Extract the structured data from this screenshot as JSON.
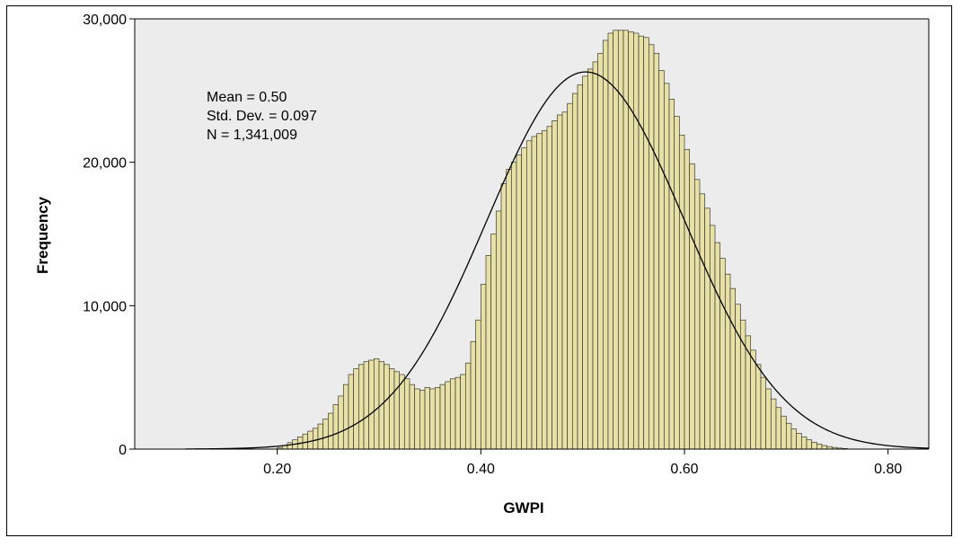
{
  "chart_data": {
    "type": "bar",
    "subtype": "histogram-with-normal-curve",
    "xlabel": "GWPI",
    "ylabel": "Frequency",
    "xlim": [
      0.06,
      0.84
    ],
    "ylim": [
      0,
      30000
    ],
    "x_ticks": [
      0.2,
      0.4,
      0.6,
      0.8
    ],
    "x_tick_labels": [
      "0.20",
      "0.40",
      "0.60",
      "0.80"
    ],
    "y_ticks": [
      0,
      10000,
      20000,
      30000
    ],
    "y_tick_labels": [
      "0",
      "10,000",
      "20,000",
      "30,000"
    ],
    "grid": false,
    "colors": {
      "plot_bg": "#ececec",
      "bar_fill": "#e7e0a7",
      "bar_stroke": "#3a3a2e",
      "curve": "#000000"
    },
    "stats": {
      "mean_label": "Mean = 0.50",
      "sd_label": "Std. Dev. = 0.097",
      "n_label": "N = 1,341,009"
    },
    "normal_curve": {
      "mean": 0.503,
      "sd": 0.097,
      "peak": 26300
    },
    "bin_width": 0.005,
    "bins": [
      {
        "x": 0.2,
        "y": 100
      },
      {
        "x": 0.205,
        "y": 250
      },
      {
        "x": 0.21,
        "y": 450
      },
      {
        "x": 0.215,
        "y": 650
      },
      {
        "x": 0.22,
        "y": 850
      },
      {
        "x": 0.225,
        "y": 1050
      },
      {
        "x": 0.23,
        "y": 1250
      },
      {
        "x": 0.235,
        "y": 1450
      },
      {
        "x": 0.24,
        "y": 1750
      },
      {
        "x": 0.245,
        "y": 2100
      },
      {
        "x": 0.25,
        "y": 2500
      },
      {
        "x": 0.255,
        "y": 3100
      },
      {
        "x": 0.26,
        "y": 3700
      },
      {
        "x": 0.265,
        "y": 4500
      },
      {
        "x": 0.27,
        "y": 5200
      },
      {
        "x": 0.275,
        "y": 5600
      },
      {
        "x": 0.28,
        "y": 5900
      },
      {
        "x": 0.285,
        "y": 6100
      },
      {
        "x": 0.29,
        "y": 6200
      },
      {
        "x": 0.295,
        "y": 6300
      },
      {
        "x": 0.3,
        "y": 6100
      },
      {
        "x": 0.305,
        "y": 5900
      },
      {
        "x": 0.31,
        "y": 5600
      },
      {
        "x": 0.315,
        "y": 5400
      },
      {
        "x": 0.32,
        "y": 5200
      },
      {
        "x": 0.325,
        "y": 4900
      },
      {
        "x": 0.33,
        "y": 4500
      },
      {
        "x": 0.335,
        "y": 4200
      },
      {
        "x": 0.34,
        "y": 4100
      },
      {
        "x": 0.345,
        "y": 4300
      },
      {
        "x": 0.35,
        "y": 4200
      },
      {
        "x": 0.355,
        "y": 4300
      },
      {
        "x": 0.36,
        "y": 4500
      },
      {
        "x": 0.365,
        "y": 4700
      },
      {
        "x": 0.37,
        "y": 4900
      },
      {
        "x": 0.375,
        "y": 5000
      },
      {
        "x": 0.38,
        "y": 5200
      },
      {
        "x": 0.385,
        "y": 6000
      },
      {
        "x": 0.39,
        "y": 7500
      },
      {
        "x": 0.395,
        "y": 9000
      },
      {
        "x": 0.4,
        "y": 11500
      },
      {
        "x": 0.405,
        "y": 13500
      },
      {
        "x": 0.41,
        "y": 15000
      },
      {
        "x": 0.415,
        "y": 16600
      },
      {
        "x": 0.42,
        "y": 18500
      },
      {
        "x": 0.425,
        "y": 19500
      },
      {
        "x": 0.43,
        "y": 20000
      },
      {
        "x": 0.435,
        "y": 20500
      },
      {
        "x": 0.44,
        "y": 21000
      },
      {
        "x": 0.445,
        "y": 21500
      },
      {
        "x": 0.45,
        "y": 21800
      },
      {
        "x": 0.455,
        "y": 22000
      },
      {
        "x": 0.46,
        "y": 22200
      },
      {
        "x": 0.465,
        "y": 22500
      },
      {
        "x": 0.47,
        "y": 22900
      },
      {
        "x": 0.475,
        "y": 23300
      },
      {
        "x": 0.48,
        "y": 23500
      },
      {
        "x": 0.485,
        "y": 24100
      },
      {
        "x": 0.49,
        "y": 24800
      },
      {
        "x": 0.495,
        "y": 25400
      },
      {
        "x": 0.5,
        "y": 26000
      },
      {
        "x": 0.505,
        "y": 26500
      },
      {
        "x": 0.51,
        "y": 27000
      },
      {
        "x": 0.515,
        "y": 27600
      },
      {
        "x": 0.52,
        "y": 28500
      },
      {
        "x": 0.525,
        "y": 29000
      },
      {
        "x": 0.53,
        "y": 29200
      },
      {
        "x": 0.535,
        "y": 29200
      },
      {
        "x": 0.54,
        "y": 29200
      },
      {
        "x": 0.545,
        "y": 29100
      },
      {
        "x": 0.55,
        "y": 29000
      },
      {
        "x": 0.555,
        "y": 28800
      },
      {
        "x": 0.56,
        "y": 28700
      },
      {
        "x": 0.565,
        "y": 28200
      },
      {
        "x": 0.57,
        "y": 27600
      },
      {
        "x": 0.575,
        "y": 26400
      },
      {
        "x": 0.58,
        "y": 25500
      },
      {
        "x": 0.585,
        "y": 24400
      },
      {
        "x": 0.59,
        "y": 23200
      },
      {
        "x": 0.595,
        "y": 21900
      },
      {
        "x": 0.6,
        "y": 20900
      },
      {
        "x": 0.605,
        "y": 19900
      },
      {
        "x": 0.61,
        "y": 18800
      },
      {
        "x": 0.615,
        "y": 17800
      },
      {
        "x": 0.62,
        "y": 16800
      },
      {
        "x": 0.625,
        "y": 15600
      },
      {
        "x": 0.63,
        "y": 14400
      },
      {
        "x": 0.635,
        "y": 13300
      },
      {
        "x": 0.64,
        "y": 12200
      },
      {
        "x": 0.645,
        "y": 11200
      },
      {
        "x": 0.65,
        "y": 10100
      },
      {
        "x": 0.655,
        "y": 9000
      },
      {
        "x": 0.66,
        "y": 7900
      },
      {
        "x": 0.665,
        "y": 6900
      },
      {
        "x": 0.67,
        "y": 5900
      },
      {
        "x": 0.675,
        "y": 5000
      },
      {
        "x": 0.68,
        "y": 4200
      },
      {
        "x": 0.685,
        "y": 3500
      },
      {
        "x": 0.69,
        "y": 2900
      },
      {
        "x": 0.695,
        "y": 2300
      },
      {
        "x": 0.7,
        "y": 1800
      },
      {
        "x": 0.705,
        "y": 1400
      },
      {
        "x": 0.71,
        "y": 1100
      },
      {
        "x": 0.715,
        "y": 850
      },
      {
        "x": 0.72,
        "y": 650
      },
      {
        "x": 0.725,
        "y": 480
      },
      {
        "x": 0.73,
        "y": 350
      },
      {
        "x": 0.735,
        "y": 250
      },
      {
        "x": 0.74,
        "y": 170
      },
      {
        "x": 0.745,
        "y": 110
      },
      {
        "x": 0.75,
        "y": 70
      },
      {
        "x": 0.755,
        "y": 40
      }
    ]
  }
}
